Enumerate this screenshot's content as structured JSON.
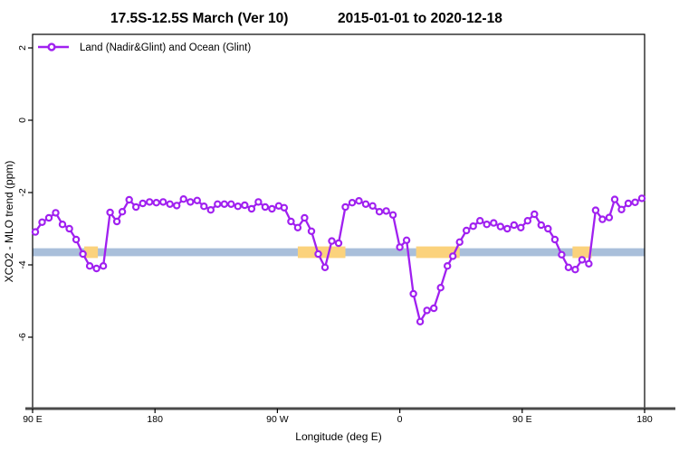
{
  "header": {
    "title_part1": "17.5S-12.5S March (Ver 10)",
    "title_part2": "2015-01-01 to 2020-12-18"
  },
  "legend": {
    "label": "Land (Nadir&Glint) and Ocean (Glint)"
  },
  "colors": {
    "series_purple": "#A020F0",
    "marker_fill": "#FFFFFF",
    "band_blue": "#A9BFDA",
    "band_orange": "#FBD27C",
    "frame": "#000000",
    "bottom_axis_gray": "#4a4a4a"
  },
  "chart_data": {
    "type": "line",
    "title": "17.5S-12.5S March (Ver 10)   2015-01-01 to 2020-12-18",
    "xlabel": "Longitude (deg E)",
    "ylabel": "XCO2 - MLO trend (ppm)",
    "legend_position": "top-left",
    "grid": false,
    "x_axis": {
      "note": "longitude wraps eastward, degrees measured from 90E at left edge",
      "range_deg": [
        0,
        450
      ],
      "tick_positions_deg": [
        0,
        90,
        180,
        270,
        360,
        450
      ],
      "tick_labels": [
        "90 E",
        "180",
        "90 W",
        "0",
        "90 E",
        "180"
      ]
    },
    "y_axis": {
      "range": [
        -7.98,
        2.38
      ],
      "tick_values": [
        2,
        0,
        -2,
        -4,
        -6
      ],
      "tick_labels": [
        "2",
        "0",
        "-2",
        "-4",
        "-6"
      ]
    },
    "bands": [
      {
        "name": "ocean-reference-band",
        "color": "#A9BFDA",
        "y_center": -3.65,
        "y_halfwidth": 0.11,
        "segments_deg": [
          [
            0,
            450
          ]
        ]
      },
      {
        "name": "land-reference-band",
        "color": "#FBD27C",
        "y_center": -3.65,
        "y_halfwidth": 0.16,
        "segments_deg": [
          [
            38,
            48
          ],
          [
            195,
            230
          ],
          [
            282,
            314
          ],
          [
            397,
            411
          ]
        ]
      }
    ],
    "series": [
      {
        "name": "Land (Nadir&Glint) and Ocean (Glint)",
        "color": "#A020F0",
        "marker": "open-circle",
        "points_deg_ppm": [
          [
            2,
            -3.09
          ],
          [
            7,
            -2.82
          ],
          [
            12,
            -2.7
          ],
          [
            17,
            -2.56
          ],
          [
            22,
            -2.88
          ],
          [
            27,
            -3.0
          ],
          [
            32,
            -3.3
          ],
          [
            37,
            -3.7
          ],
          [
            42,
            -4.03
          ],
          [
            47,
            -4.1
          ],
          [
            52,
            -4.03
          ],
          [
            57,
            -2.55
          ],
          [
            62,
            -2.8
          ],
          [
            66,
            -2.53
          ],
          [
            71,
            -2.2
          ],
          [
            76,
            -2.4
          ],
          [
            81,
            -2.3
          ],
          [
            86,
            -2.26
          ],
          [
            91,
            -2.28
          ],
          [
            96,
            -2.26
          ],
          [
            101,
            -2.32
          ],
          [
            106,
            -2.36
          ],
          [
            111,
            -2.18
          ],
          [
            116,
            -2.26
          ],
          [
            121,
            -2.22
          ],
          [
            126,
            -2.38
          ],
          [
            131,
            -2.48
          ],
          [
            136,
            -2.32
          ],
          [
            141,
            -2.32
          ],
          [
            146,
            -2.32
          ],
          [
            151,
            -2.38
          ],
          [
            156,
            -2.35
          ],
          [
            161,
            -2.45
          ],
          [
            166,
            -2.26
          ],
          [
            171,
            -2.4
          ],
          [
            176,
            -2.45
          ],
          [
            181,
            -2.37
          ],
          [
            185,
            -2.42
          ],
          [
            190,
            -2.8
          ],
          [
            195,
            -2.97
          ],
          [
            200,
            -2.7
          ],
          [
            205,
            -3.07
          ],
          [
            210,
            -3.7
          ],
          [
            215,
            -4.07
          ],
          [
            220,
            -3.34
          ],
          [
            225,
            -3.4
          ],
          [
            230,
            -2.4
          ],
          [
            235,
            -2.28
          ],
          [
            240,
            -2.23
          ],
          [
            245,
            -2.32
          ],
          [
            250,
            -2.37
          ],
          [
            255,
            -2.53
          ],
          [
            260,
            -2.51
          ],
          [
            265,
            -2.62
          ],
          [
            270,
            -3.51
          ],
          [
            275,
            -3.32
          ],
          [
            280,
            -4.8
          ],
          [
            285,
            -5.57
          ],
          [
            290,
            -5.26
          ],
          [
            295,
            -5.2
          ],
          [
            300,
            -4.63
          ],
          [
            305,
            -4.03
          ],
          [
            309,
            -3.76
          ],
          [
            314,
            -3.37
          ],
          [
            319,
            -3.05
          ],
          [
            324,
            -2.93
          ],
          [
            329,
            -2.78
          ],
          [
            334,
            -2.88
          ],
          [
            339,
            -2.84
          ],
          [
            344,
            -2.94
          ],
          [
            349,
            -3.0
          ],
          [
            354,
            -2.9
          ],
          [
            359,
            -2.97
          ],
          [
            364,
            -2.78
          ],
          [
            369,
            -2.6
          ],
          [
            374,
            -2.9
          ],
          [
            379,
            -3.0
          ],
          [
            384,
            -3.3
          ],
          [
            389,
            -3.72
          ],
          [
            394,
            -4.07
          ],
          [
            399,
            -4.13
          ],
          [
            404,
            -3.86
          ],
          [
            409,
            -3.97
          ],
          [
            414,
            -2.49
          ],
          [
            419,
            -2.74
          ],
          [
            424,
            -2.69
          ],
          [
            428,
            -2.19
          ],
          [
            433,
            -2.47
          ],
          [
            438,
            -2.3
          ],
          [
            443,
            -2.27
          ],
          [
            448,
            -2.16
          ]
        ]
      }
    ]
  }
}
